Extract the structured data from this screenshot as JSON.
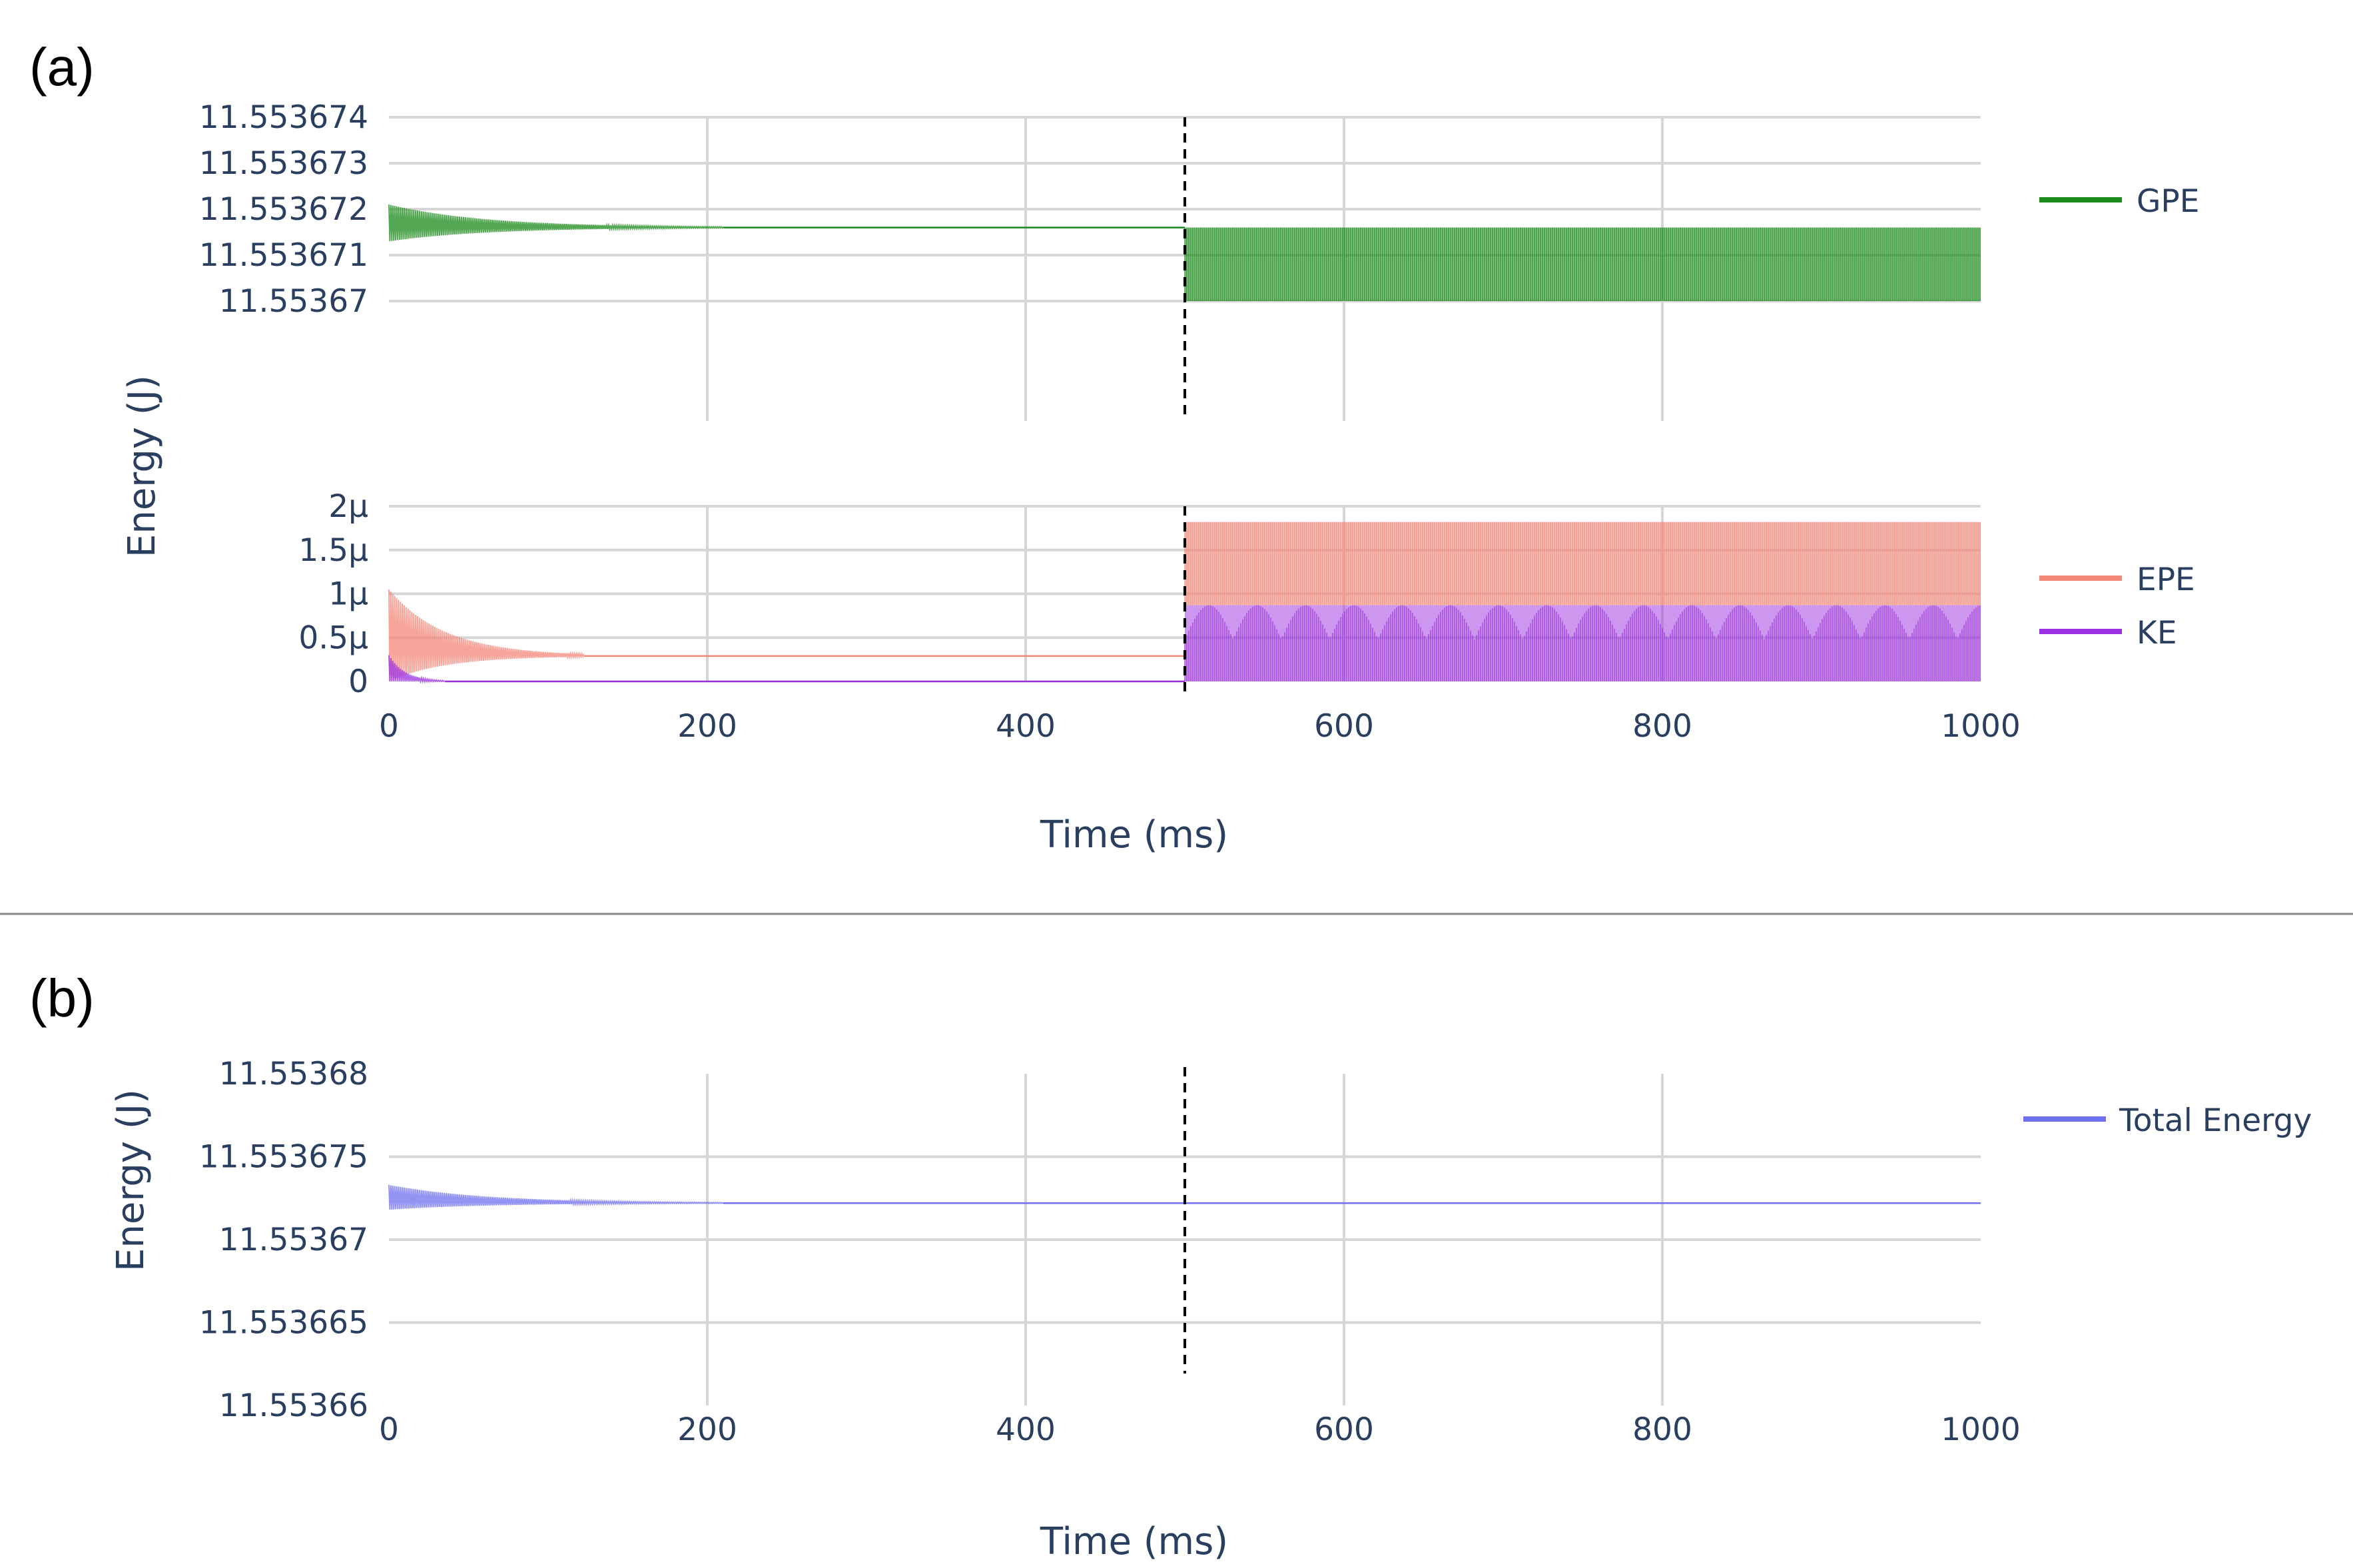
{
  "panel_a_label": "(a)",
  "panel_b_label": "(b)",
  "colors": {
    "GPE": "#1a8a1a",
    "EPE": "#f4877a",
    "KE": "#9b30e0",
    "Total Energy": "#6f6ff0",
    "axis_text": "#2a3f5f",
    "grid": "#d6d6d6"
  },
  "chart_data": [
    {
      "type": "line",
      "panel": "a-top",
      "ylabel": "Energy (J)",
      "xlim": [
        0,
        1000
      ],
      "ylim": [
        11.55367,
        11.553674
      ],
      "y_ticks": [
        "11.553674",
        "11.553673",
        "11.553672",
        "11.553671",
        "11.55367"
      ],
      "y_tick_values": [
        11.553674,
        11.553673,
        11.553672,
        11.553671,
        11.55367
      ],
      "x_grid": [
        200,
        400,
        600,
        800
      ],
      "vline_x": 500,
      "grid": true,
      "legend_position": "right",
      "series": [
        {
          "name": "GPE",
          "phases": [
            {
              "x": [
                0,
                500
              ],
              "initial_min": 11.5536713,
              "initial_max": 11.5536721,
              "settled": 11.5536716,
              "decay_ms": 60
            },
            {
              "x": [
                500,
                1000
              ],
              "min": 11.55367,
              "max": 11.5536716
            }
          ]
        }
      ]
    },
    {
      "type": "line",
      "panel": "a-bottom",
      "xlabel": "Time (ms)",
      "xlim": [
        0,
        1000
      ],
      "ylim": [
        0,
        2e-06
      ],
      "x_ticks": [
        "0",
        "200",
        "400",
        "600",
        "800",
        "1000"
      ],
      "x_tick_values": [
        0,
        200,
        400,
        600,
        800,
        1000
      ],
      "y_ticks": [
        "2μ",
        "1.5μ",
        "1μ",
        "0.5μ",
        "0"
      ],
      "y_tick_values": [
        2e-06,
        1.5e-06,
        1e-06,
        5e-07,
        0
      ],
      "vline_x": 500,
      "grid": true,
      "legend_position": "right",
      "series": [
        {
          "name": "EPE",
          "phases": [
            {
              "x": [
                0,
                500
              ],
              "initial_min": 0.0,
              "initial_max": 1.05e-06,
              "settled": 2.9e-07,
              "decay_ms": 35
            },
            {
              "x": [
                500,
                1000
              ],
              "min": 8.7e-07,
              "max": 1.82e-06
            }
          ]
        },
        {
          "name": "KE",
          "phases": [
            {
              "x": [
                0,
                500
              ],
              "initial_min": 0.0,
              "initial_max": 3e-07,
              "settled": 0.0,
              "decay_ms": 10
            },
            {
              "x": [
                500,
                1000
              ],
              "min": 0.0,
              "max": 8.7e-07
            }
          ]
        }
      ]
    },
    {
      "type": "line",
      "panel": "b",
      "ylabel": "Energy (J)",
      "xlabel": "Time (ms)",
      "xlim": [
        0,
        1000
      ],
      "ylim": [
        11.55366,
        11.55368
      ],
      "x_ticks": [
        "0",
        "200",
        "400",
        "600",
        "800",
        "1000"
      ],
      "x_tick_values": [
        0,
        200,
        400,
        600,
        800,
        1000
      ],
      "y_ticks": [
        "11.55368",
        "11.553675",
        "11.55367",
        "11.553665",
        "11.55366"
      ],
      "y_tick_values": [
        11.55368,
        11.553675,
        11.55367,
        11.553665,
        11.55366
      ],
      "vline_x": 500,
      "grid": true,
      "legend_position": "top-right",
      "series": [
        {
          "name": "Total Energy",
          "phases": [
            {
              "x": [
                0,
                1000
              ],
              "initial_min": 11.5536718,
              "initial_max": 11.5536733,
              "settled": 11.5536722,
              "decay_ms": 60
            }
          ]
        }
      ]
    }
  ]
}
